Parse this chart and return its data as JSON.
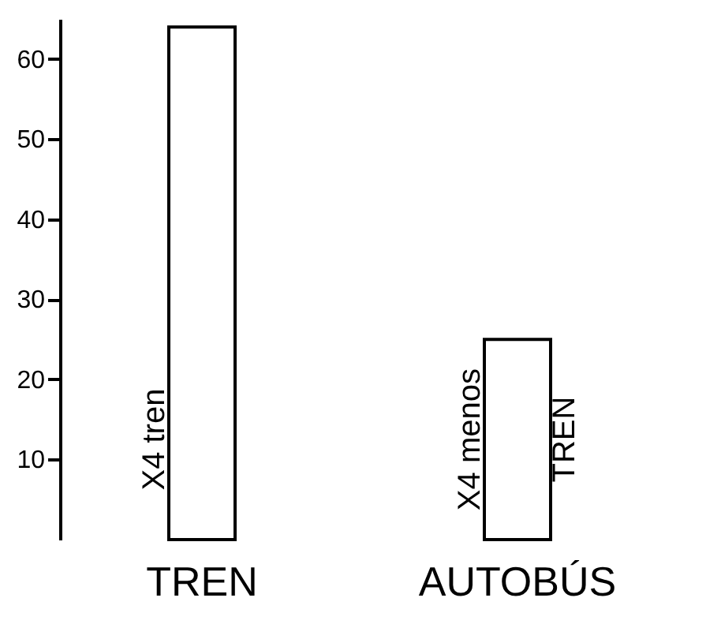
{
  "chart_data": {
    "type": "bar",
    "categories": [
      "TREN",
      "AUTOBÚS"
    ],
    "values": [
      64,
      25
    ],
    "color": "#ffffff",
    "ylim": [
      0,
      65
    ],
    "yticks": [
      10,
      20,
      30,
      40,
      50,
      60
    ],
    "grid": false,
    "annotations": [
      "X4 tren",
      "X4 menos",
      "TREN"
    ]
  }
}
